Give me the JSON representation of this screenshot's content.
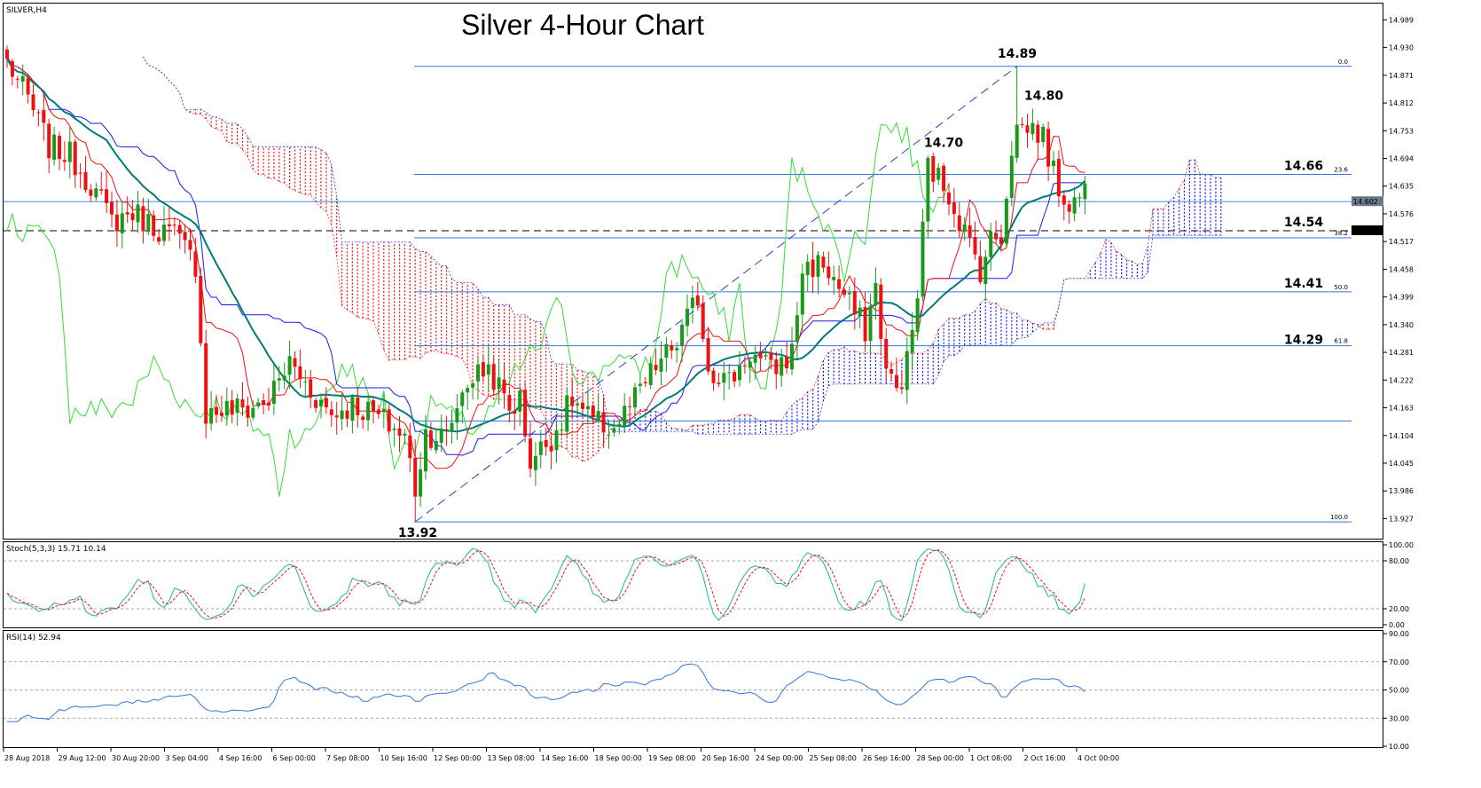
{
  "header": {
    "symbol": "SILVER,H4",
    "title": "Silver 4-Hour Chart"
  },
  "colors": {
    "bull": "#1a9a1a",
    "bear": "#ee1111",
    "tenkan": "#ee1111",
    "kijun": "#1a1aee",
    "chikou": "#33dd33",
    "ma": "#007a7a",
    "kumo_bear": "#ee1111",
    "kumo_bull": "#1a1aee",
    "fib": "#3377dd",
    "stoch_main": "#20b2aa",
    "stoch_signal": "#ee1111",
    "rsi": "#3377dd"
  },
  "indicators": {
    "stoch_label": "Stoch(5,3,3) 15.71 10.14",
    "rsi_label": "RSI(14) 52.94"
  },
  "chart_data": [
    {
      "type": "candlestick",
      "title": "Silver 4-Hour Chart",
      "ylim": [
        13.89,
        15.02
      ],
      "y_ticks": [
        "14.989",
        "14.930",
        "14.871",
        "14.812",
        "14.753",
        "14.694",
        "14.635",
        "14.576",
        "14.517",
        "14.458",
        "14.399",
        "14.340",
        "14.281",
        "14.222",
        "14.163",
        "14.104",
        "14.045",
        "13.986",
        "13.927"
      ],
      "x_ticks": [
        "28 Aug 2018",
        "29 Aug 12:00",
        "30 Aug 20:00",
        "3 Sep 04:00",
        "4 Sep 16:00",
        "6 Sep 00:00",
        "7 Sep 08:00",
        "10 Sep 16:00",
        "12 Sep 00:00",
        "13 Sep 08:00",
        "14 Sep 16:00",
        "18 Sep 00:00",
        "19 Sep 08:00",
        "20 Sep 16:00",
        "24 Sep 00:00",
        "25 Sep 08:00",
        "26 Sep 16:00",
        "28 Sep 00:00",
        "1 Oct 08:00",
        "2 Oct 16:00",
        "4 Oct 00:00"
      ],
      "current_price": "14.602",
      "dashed_level": "14.540",
      "fib_levels": [
        {
          "ratio": "0.0",
          "value": 14.89
        },
        {
          "ratio": "23.6",
          "value": 14.66
        },
        {
          "ratio": "38.2",
          "value": 14.525
        },
        {
          "ratio": "50.0",
          "value": 14.41
        },
        {
          "ratio": "61.8",
          "value": 14.295
        },
        {
          "ratio": "100.0",
          "value": 13.92
        }
      ],
      "extra_hline": 14.135,
      "annotations": [
        {
          "text": "14.89",
          "value": 14.89
        },
        {
          "text": "14.80",
          "value": 14.8
        },
        {
          "text": "14.70",
          "value": 14.7
        },
        {
          "text": "13.92",
          "value": 13.92
        },
        {
          "text": "14.66",
          "value": 14.66
        },
        {
          "text": "14.54",
          "value": 14.54
        },
        {
          "text": "14.41",
          "value": 14.41
        },
        {
          "text": "14.29",
          "value": 14.29
        }
      ],
      "trendline": {
        "from": 13.92,
        "to": 14.89
      },
      "anchors": [
        [
          0,
          14.9
        ],
        [
          4,
          14.82
        ],
        [
          8,
          14.72
        ],
        [
          12,
          14.7
        ],
        [
          16,
          14.64
        ],
        [
          20,
          14.56
        ],
        [
          24,
          14.58
        ],
        [
          28,
          14.55
        ],
        [
          32,
          14.53
        ],
        [
          36,
          14.47
        ],
        [
          38,
          14.15
        ],
        [
          42,
          14.16
        ],
        [
          46,
          14.16
        ],
        [
          50,
          14.18
        ],
        [
          54,
          14.26
        ],
        [
          58,
          14.2
        ],
        [
          62,
          14.15
        ],
        [
          66,
          14.17
        ],
        [
          70,
          14.15
        ],
        [
          74,
          14.12
        ],
        [
          76,
          14.1
        ],
        [
          78,
          13.99
        ],
        [
          80,
          14.11
        ],
        [
          84,
          14.1
        ],
        [
          86,
          14.17
        ],
        [
          88,
          14.22
        ],
        [
          92,
          14.25
        ],
        [
          96,
          14.16
        ],
        [
          98,
          14.18
        ],
        [
          100,
          14.05
        ],
        [
          104,
          14.1
        ],
        [
          108,
          14.18
        ],
        [
          112,
          14.13
        ],
        [
          116,
          14.12
        ],
        [
          120,
          14.18
        ],
        [
          124,
          14.25
        ],
        [
          128,
          14.3
        ],
        [
          132,
          14.4
        ],
        [
          134,
          14.25
        ],
        [
          138,
          14.22
        ],
        [
          142,
          14.28
        ],
        [
          146,
          14.24
        ],
        [
          150,
          14.28
        ],
        [
          152,
          14.46
        ],
        [
          156,
          14.47
        ],
        [
          160,
          14.4
        ],
        [
          164,
          14.33
        ],
        [
          166,
          14.42
        ],
        [
          168,
          14.24
        ],
        [
          170,
          14.2
        ],
        [
          172,
          14.26
        ],
        [
          174,
          14.4
        ],
        [
          176,
          14.68
        ],
        [
          180,
          14.62
        ],
        [
          184,
          14.51
        ],
        [
          186,
          14.46
        ],
        [
          188,
          14.52
        ],
        [
          190,
          14.53
        ],
        [
          192,
          14.72
        ],
        [
          193,
          14.76
        ],
        [
          196,
          14.76
        ],
        [
          198,
          14.74
        ],
        [
          200,
          14.66
        ],
        [
          202,
          14.61
        ],
        [
          204,
          14.6
        ],
        [
          206,
          14.63
        ]
      ]
    },
    {
      "type": "line",
      "title": "Stoch(5,3,3) 15.71 10.14",
      "ylim": [
        0,
        100
      ],
      "y_ticks": [
        "100.00",
        "80.00",
        "20.00",
        "0.00"
      ],
      "levels": [
        80,
        20
      ]
    },
    {
      "type": "line",
      "title": "RSI(14) 52.94",
      "ylim": [
        10,
        90
      ],
      "y_ticks": [
        "90.00",
        "70.00",
        "50.00",
        "30.00",
        "10.00"
      ],
      "levels": [
        70,
        50,
        30
      ]
    }
  ]
}
